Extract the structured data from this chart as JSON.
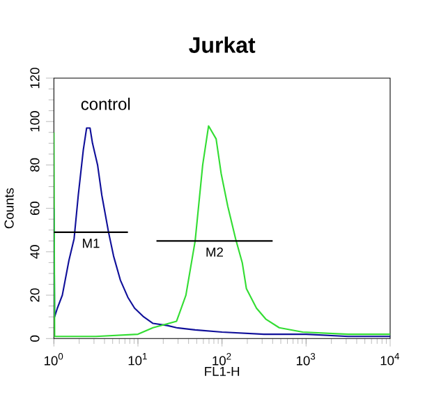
{
  "chart_data": {
    "type": "line",
    "title": "Jurkat",
    "xlabel": "FL1-H",
    "ylabel": "Counts",
    "log": "x",
    "xlim": [
      1,
      10000
    ],
    "ylim": [
      0,
      120
    ],
    "xticks": [
      {
        "value": 1,
        "label": "10$^{0}$"
      },
      {
        "value": 10,
        "label": "10$^{1}$"
      },
      {
        "value": 100,
        "label": "10$^{2}$"
      },
      {
        "value": 1000,
        "label": "10$^{3}$"
      },
      {
        "value": 10000,
        "label": "10$^{4}$"
      }
    ],
    "yticks": [
      0,
      20,
      40,
      60,
      80,
      100,
      120
    ],
    "grid": false,
    "marker": "none",
    "line_style": "solid",
    "series": [
      {
        "color": "#10109a",
        "x": [
          1,
          1.02,
          1.1,
          1.26,
          1.51,
          1.74,
          1.95,
          2.24,
          2.45,
          2.69,
          2.88,
          3.31,
          3.72,
          4.47,
          5.13,
          6.17,
          7.59,
          9.12,
          11.7,
          15.1,
          22.4,
          28.8,
          47.9,
          100,
          316,
          1000,
          3162,
          10000
        ],
        "values": [
          60,
          10,
          14,
          20,
          36,
          46,
          66,
          87,
          97,
          97,
          90,
          80,
          66,
          49,
          38,
          27,
          19,
          14,
          10,
          7,
          6,
          5,
          4,
          3,
          2,
          2,
          1,
          1
        ]
      },
      {
        "color": "#33dd33",
        "x": [
          1,
          1.02,
          3.16,
          10,
          15.1,
          28.8,
          37.2,
          47.9,
          58.9,
          69.2,
          85.1,
          97.7,
          117,
          145,
          174,
          195,
          257,
          331,
          479,
          912,
          3162,
          10000
        ],
        "values": [
          95,
          1,
          1,
          2,
          5,
          8,
          20,
          45,
          80,
          98,
          92,
          76,
          61,
          46,
          35,
          23,
          14,
          9,
          5,
          3,
          2,
          2
        ]
      },
      {
        "color": "#000000",
        "x": [
          1,
          7.6
        ],
        "values": [
          49,
          49
        ]
      },
      {
        "color": "#000000",
        "x": [
          16.6,
          400
        ],
        "values": [
          45,
          45
        ]
      }
    ],
    "annotations": [
      "control",
      "M1",
      "M2"
    ]
  }
}
